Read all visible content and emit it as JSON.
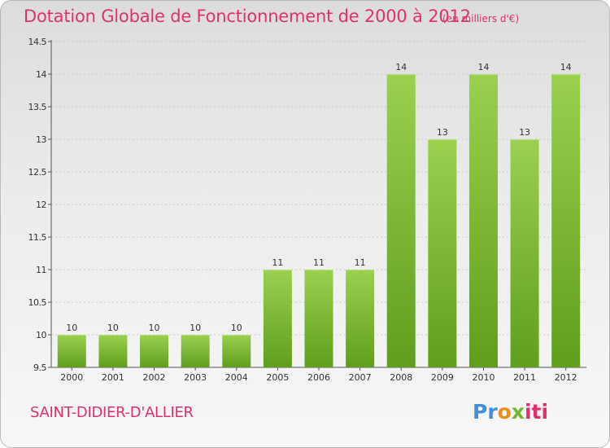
{
  "title": "Dotation Globale de Fonctionnement de 2000 à 2012",
  "unit_note": "(en milliers d'€)",
  "commune": "SAINT-DIDIER-D'ALLIER",
  "logo": {
    "text": "Proxiti",
    "parts": [
      "Pr",
      "o",
      "x",
      "iti"
    ]
  },
  "colors": {
    "accent": "#e0306e",
    "bar_top": "#9bd050",
    "bar_bottom": "#5f9e1c"
  },
  "chart_data": {
    "type": "bar",
    "title": "Dotation Globale de Fonctionnement de 2000 à 2012",
    "subtitle": "(en milliers d'€)",
    "xlabel": "",
    "ylabel": "",
    "categories": [
      "2000",
      "2001",
      "2002",
      "2003",
      "2004",
      "2005",
      "2006",
      "2007",
      "2008",
      "2009",
      "2010",
      "2011",
      "2012"
    ],
    "values": [
      10,
      10,
      10,
      10,
      10,
      11,
      11,
      11,
      14,
      13,
      14,
      13,
      14
    ],
    "data_labels": [
      "10",
      "10",
      "10",
      "10",
      "10",
      "11",
      "11",
      "11",
      "14",
      "13",
      "14",
      "13",
      "14"
    ],
    "ylim": [
      9.5,
      14.5
    ],
    "yticks": [
      "9.5",
      "10",
      "10.5",
      "11",
      "11.5",
      "12",
      "12.5",
      "13",
      "13.5",
      "14",
      "14.5"
    ],
    "grid": true,
    "legend": "none"
  }
}
